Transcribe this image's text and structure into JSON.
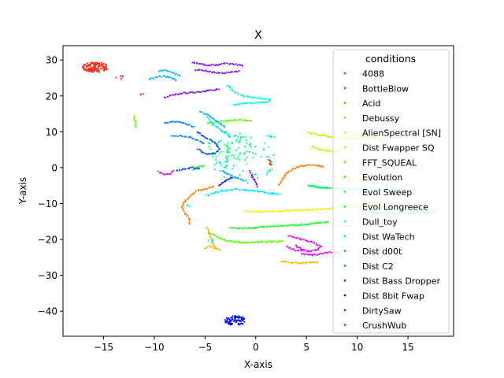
{
  "chart_data": {
    "type": "scatter",
    "title": "X",
    "xlabel": "X-axis",
    "ylabel": "Y-axis",
    "xlim": [
      -19,
      19.5
    ],
    "ylim": [
      -47,
      34
    ],
    "xticks": [
      -15,
      -10,
      -5,
      0,
      5,
      10,
      15
    ],
    "yticks": [
      30,
      20,
      10,
      0,
      -10,
      -20,
      -30,
      -40
    ],
    "grid": false,
    "legend": {
      "title": "conditions",
      "placement": "top-right"
    },
    "series": [
      {
        "name": "4088",
        "color": "#ff2a1a",
        "clusters": [
          {
            "cx": -15.8,
            "cy": 28.0,
            "rx": 1.3,
            "ry": 1.4,
            "n": 120,
            "shape": "blob"
          },
          {
            "cx": -13.2,
            "cy": 25.2,
            "rx": 0.6,
            "ry": 0.4,
            "n": 5,
            "shape": "blob"
          }
        ]
      },
      {
        "name": "BottleBlow",
        "color": "#ff3a10",
        "clusters": [
          {
            "cx": 1.4,
            "cy": 1.5,
            "rx": 0.3,
            "ry": 0.8,
            "n": 8,
            "shape": "blob"
          },
          {
            "cx": -11.2,
            "cy": 20.5,
            "rx": 0.2,
            "ry": 0.3,
            "n": 3,
            "shape": "blob"
          }
        ]
      },
      {
        "name": "Acid",
        "color": "#ff7b00",
        "clusters": [
          {
            "x": [
              -6.5,
              -6.6,
              -7.0,
              -7.3,
              -7.0,
              -6.6,
              -6.1,
              -5.6,
              -5.0,
              -4.5,
              -4.0
            ],
            "y": [
              -15.8,
              -14.0,
              -12.5,
              -11.0,
              -9.5,
              -8.2,
              -7.0,
              -6.3,
              -6.0,
              -5.6,
              -5.3
            ],
            "shape": "path"
          },
          {
            "x": [
              2.3,
              2.6,
              3.0,
              3.6,
              4.4,
              5.3,
              6.1,
              6.8
            ],
            "y": [
              -5.0,
              -3.5,
              -1.8,
              -0.5,
              0.4,
              0.8,
              0.6,
              0.2
            ],
            "shape": "path"
          }
        ]
      },
      {
        "name": "Debussy",
        "color": "#ffb400",
        "clusters": [
          {
            "x": [
              -4.8,
              -4.6,
              -4.3,
              -4.1,
              -3.8
            ],
            "y": [
              -16.8,
              -18.5,
              -20.5,
              -22.0,
              -23.0
            ],
            "shape": "path"
          },
          {
            "x": [
              -5.0,
              -4.5,
              -4.0,
              -3.4
            ],
            "y": [
              -22.5,
              -22.0,
              -22.3,
              -23.0
            ],
            "shape": "path"
          },
          {
            "x": [
              2.5,
              3.5,
              4.5,
              5.5,
              6.2
            ],
            "y": [
              -26.2,
              -26.4,
              -26.6,
              -26.5,
              -26.4
            ],
            "shape": "path"
          }
        ]
      },
      {
        "name": "AlienSpectral [SN]",
        "color": "#f5f000",
        "clusters": [
          {
            "x": [
              8.3,
              9.0,
              10.0,
              11.0,
              12.0
            ],
            "y": [
              -2.5,
              -3.0,
              -3.3,
              -3.5,
              -3.6
            ],
            "shape": "path"
          },
          {
            "x": [
              -1.0,
              1.0,
              3.0,
              5.0,
              7.0,
              9.0,
              11.0,
              12.5
            ],
            "y": [
              -12.2,
              -12.3,
              -12.0,
              -11.8,
              -11.5,
              -11.0,
              -10.6,
              -10.4
            ],
            "shape": "path"
          },
          {
            "x": [
              9.5,
              10.0,
              10.6,
              11.2
            ],
            "y": [
              9.8,
              9.0,
              8.5,
              8.9
            ],
            "shape": "path"
          }
        ]
      },
      {
        "name": "Dist Fwapper SQ",
        "color": "#b4ff00",
        "clusters": [
          {
            "x": [
              5.2,
              6.0,
              7.0,
              8.0,
              9.0,
              10.0,
              11.0,
              12.0,
              12.8
            ],
            "y": [
              9.8,
              9.3,
              8.7,
              8.3,
              8.0,
              8.2,
              8.4,
              8.2,
              7.8
            ],
            "shape": "path"
          },
          {
            "x": [
              5.5,
              6.0,
              6.8,
              7.5,
              8.2,
              8.9
            ],
            "y": [
              6.0,
              5.3,
              4.8,
              4.6,
              4.6,
              4.8
            ],
            "shape": "path"
          }
        ]
      },
      {
        "name": "FFT_SQUEAL",
        "color": "#55ff00",
        "clusters": [
          {
            "x": [
              -12.0,
              -11.9,
              -11.8
            ],
            "y": [
              14.2,
              12.5,
              11.0
            ],
            "shape": "path"
          },
          {
            "x": [
              -0.5,
              -1.2,
              -2.0,
              -3.0,
              -4.0,
              -4.8
            ],
            "y": [
              13.0,
              13.2,
              13.3,
              13.0,
              12.6,
              12.2
            ],
            "shape": "path"
          },
          {
            "x": [
              -4.6,
              -3.8,
              -3.0,
              -2.0,
              -1.0,
              0.0,
              1.0,
              2.0,
              2.8
            ],
            "y": [
              -18.0,
              -19.3,
              -20.3,
              -20.8,
              -20.9,
              -20.8,
              -20.7,
              -20.6,
              -20.5
            ],
            "shape": "path"
          }
        ]
      },
      {
        "name": "Evolution",
        "color": "#10ff20",
        "clusters": [
          {
            "x": [
              -2.5,
              -1.5,
              -0.5,
              0.5,
              1.5,
              2.5,
              3.5,
              4.5,
              5.5,
              6.5,
              7.3
            ],
            "y": [
              -16.8,
              -16.9,
              -16.8,
              -16.6,
              -16.4,
              -16.3,
              -16.1,
              -15.9,
              -15.6,
              -15.3,
              -15.1
            ],
            "shape": "path"
          },
          {
            "x": [
              5.2,
              5.8,
              6.5,
              7.2
            ],
            "y": [
              -5.0,
              -5.4,
              -5.6,
              -5.7
            ],
            "shape": "path"
          },
          {
            "x": [
              -6.2,
              -5.6,
              -5.0
            ],
            "y": [
              -0.5,
              0.2,
              0.6
            ],
            "shape": "path"
          }
        ]
      },
      {
        "name": "Evol Sweep",
        "color": "#00ff70",
        "clusters": [
          {
            "x": [
              5.3,
              6.0,
              7.0,
              8.0,
              9.0,
              10.0,
              11.0,
              12.0,
              13.0,
              14.0,
              15.0
            ],
            "y": [
              -5.0,
              -5.4,
              -5.6,
              -5.8,
              -5.9,
              -6.0,
              -6.0,
              -6.1,
              -6.1,
              -6.0,
              -6.0
            ],
            "shape": "path"
          },
          {
            "cx": -2.6,
            "cy": 5.2,
            "rx": 2.2,
            "ry": 5.0,
            "n": 55,
            "shape": "blob"
          }
        ]
      },
      {
        "name": "Evol Longreece",
        "color": "#00ffa8",
        "clusters": [
          {
            "cx": -1.2,
            "cy": 2.5,
            "rx": 3.2,
            "ry": 7.5,
            "n": 70,
            "shape": "blob"
          },
          {
            "cx": -6.5,
            "cy": -10.5,
            "rx": 0.4,
            "ry": 0.3,
            "n": 3,
            "shape": "blob"
          },
          {
            "cx": -4.5,
            "cy": -20.5,
            "rx": 0.4,
            "ry": 0.6,
            "n": 4,
            "shape": "blob"
          }
        ]
      },
      {
        "name": "Dull_toy",
        "color": "#00ffe0",
        "clusters": [
          {
            "x": [
              -2.8,
              -2.2,
              -1.5,
              -0.8,
              0.0,
              0.6,
              1.0,
              1.3,
              1.5
            ],
            "y": [
              22.9,
              21.3,
              20.3,
              19.8,
              19.5,
              19.3,
              19.2,
              19.0,
              18.6
            ],
            "shape": "path"
          },
          {
            "x": [
              -2.2,
              -1.5,
              -0.8,
              0.0,
              0.8,
              1.4
            ],
            "y": [
              17.5,
              17.8,
              17.9,
              18.0,
              18.2,
              18.5
            ],
            "shape": "path"
          },
          {
            "x": [
              10.5,
              11.2,
              12.0,
              13.0,
              14.0,
              15.0,
              16.0,
              17.0,
              17.8
            ],
            "y": [
              -11.8,
              -12.3,
              -12.6,
              -12.8,
              -12.8,
              -12.6,
              -12.4,
              -12.3,
              -12.2
            ],
            "shape": "path"
          }
        ]
      },
      {
        "name": "Dist WaTech",
        "color": "#00e8ff",
        "clusters": [
          {
            "x": [
              -4.8,
              -3.5,
              -2.0,
              -0.5,
              1.0,
              2.5
            ],
            "y": [
              -7.8,
              -6.5,
              -6.0,
              -6.3,
              -7.0,
              -7.6
            ],
            "shape": "path"
          },
          {
            "x": [
              -4.8,
              -4.3,
              -3.6,
              -3.0,
              -2.4
            ],
            "y": [
              14.0,
              12.3,
              10.8,
              9.6,
              8.5
            ],
            "shape": "path"
          },
          {
            "cx": 1.5,
            "cy": 8.6,
            "rx": 0.5,
            "ry": 0.4,
            "n": 6,
            "shape": "blob"
          }
        ]
      },
      {
        "name": "Dist d00t",
        "color": "#00b4ff",
        "clusters": [
          {
            "x": [
              -10.5,
              -9.8,
              -9.0,
              -8.3,
              -7.7
            ],
            "y": [
              24.6,
              25.3,
              25.5,
              25.0,
              24.3
            ],
            "shape": "path"
          },
          {
            "x": [
              -9.5,
              -9.0,
              -8.4,
              -7.8,
              -7.3
            ],
            "y": [
              27.0,
              27.2,
              26.8,
              26.0,
              25.4
            ],
            "shape": "path"
          },
          {
            "x": [
              -5.5,
              -4.8,
              -4.1,
              -3.5,
              -3.0
            ],
            "y": [
              15.8,
              14.7,
              13.4,
              12.3,
              11.2
            ],
            "shape": "path"
          },
          {
            "x": [
              -3.3,
              -2.8,
              -2.2,
              -1.5,
              -0.9
            ],
            "y": [
              -1.0,
              -1.8,
              -2.6,
              -3.3,
              -3.8
            ],
            "shape": "path"
          }
        ]
      },
      {
        "name": "Dist C2",
        "color": "#0088ff",
        "clusters": [
          {
            "x": [
              -9.0,
              -8.5,
              -7.9,
              -7.2,
              -6.5,
              -6.0
            ],
            "y": [
              12.4,
              12.8,
              12.8,
              12.5,
              11.8,
              11.2
            ],
            "shape": "path"
          },
          {
            "x": [
              -8.3,
              -7.5,
              -6.7,
              -6.0,
              -5.4,
              -5.0
            ],
            "y": [
              8.8,
              8.9,
              8.6,
              8.0,
              7.2,
              6.5
            ],
            "shape": "path"
          }
        ]
      },
      {
        "name": "Dist Bass Dropper",
        "color": "#0050ff",
        "clusters": [
          {
            "x": [
              -5.8,
              -5.3,
              -4.6,
              -4.0,
              -3.6,
              -4.0,
              -4.8,
              -5.4,
              -5.8
            ],
            "y": [
              10.0,
              9.0,
              8.0,
              6.8,
              5.0,
              4.0,
              3.8,
              4.5,
              5.5
            ],
            "shape": "path"
          },
          {
            "x": [
              -7.8,
              -7.0,
              -6.2,
              -5.5
            ],
            "y": [
              -0.8,
              -0.3,
              0.0,
              -0.3
            ],
            "shape": "path"
          }
        ]
      },
      {
        "name": "Dist 8bit Fwap",
        "color": "#0a14ff",
        "clusters": [
          {
            "cx": -2.0,
            "cy": -42.6,
            "rx": 1.1,
            "ry": 1.3,
            "n": 85,
            "shape": "blob"
          },
          {
            "x": [
              -3.6,
              -3.2,
              -2.7,
              -2.2
            ],
            "y": [
              -5.0,
              -4.0,
              -3.2,
              -2.6
            ],
            "shape": "path"
          }
        ]
      },
      {
        "name": "DirtySaw",
        "color": "#8c0aff",
        "clusters": [
          {
            "x": [
              -9.0,
              -8.0,
              -7.0,
              -6.0,
              -5.0,
              -4.0,
              -3.5
            ],
            "y": [
              19.5,
              20.3,
              20.8,
              21.0,
              21.3,
              21.7,
              22.0
            ],
            "shape": "path"
          },
          {
            "x": [
              -6.2,
              -5.5,
              -4.7,
              -3.8,
              -3.0,
              -2.0,
              -1.2
            ],
            "y": [
              29.3,
              29.0,
              28.6,
              28.6,
              29.0,
              28.8,
              28.4
            ],
            "shape": "path"
          },
          {
            "x": [
              -6.0,
              -5.0,
              -4.0,
              -3.0,
              -2.0,
              -1.5
            ],
            "y": [
              27.3,
              27.0,
              26.5,
              26.4,
              26.8,
              27.0
            ],
            "shape": "path"
          },
          {
            "x": [
              -0.6,
              -0.3,
              0.0,
              0.2
            ],
            "y": [
              -1.0,
              -2.5,
              -4.0,
              -5.5
            ],
            "shape": "path"
          }
        ]
      },
      {
        "name": "CrushWub",
        "color": "#e40aff",
        "clusters": [
          {
            "x": [
              -9.6,
              -9.0,
              -8.4,
              -8.0
            ],
            "y": [
              -1.2,
              -1.8,
              -1.6,
              -0.7
            ],
            "shape": "path"
          },
          {
            "x": [
              3.3,
              4.0,
              5.0,
              5.8,
              6.5,
              6.0,
              5.2,
              4.5,
              3.8
            ],
            "y": [
              -19.0,
              -19.6,
              -20.3,
              -21.0,
              -22.0,
              -22.8,
              -23.4,
              -22.7,
              -21.5
            ],
            "shape": "path"
          },
          {
            "x": [
              4.5,
              5.3,
              6.0,
              6.8,
              7.6,
              8.4
            ],
            "y": [
              -24.0,
              -24.4,
              -24.2,
              -23.8,
              -23.5,
              -24.0
            ],
            "shape": "path"
          },
          {
            "x": [
              3.0,
              3.6,
              4.2,
              4.8
            ],
            "y": [
              -22.0,
              -22.7,
              -23.2,
              -22.9
            ],
            "shape": "path"
          }
        ]
      }
    ]
  }
}
